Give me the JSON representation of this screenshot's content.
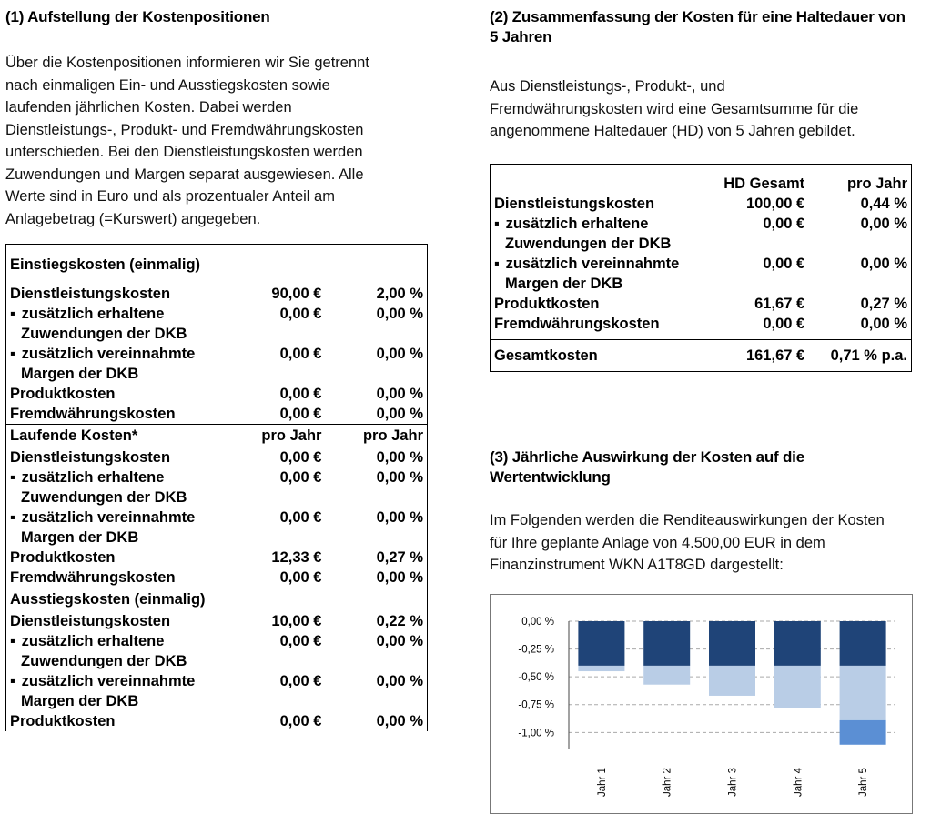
{
  "left": {
    "title": "(1) Aufstellung der Kostenpositionen",
    "intro_lines": [
      "Über die Kostenpositionen informieren wir Sie getrennt",
      "nach einmaligen Ein- und Ausstiegskosten sowie",
      "laufenden jährlichen Kosten. Dabei werden",
      "Dienstleistungs-, Produkt- und Fremdwährungskosten",
      "unterschieden. Bei den Dienstleistungskosten werden",
      "Zuwendungen und Margen separat ausgewiesen. Alle",
      "Werte sind in Euro und als prozentualer Anteil am",
      "Anlagebetrag (=Kurswert) angegeben."
    ],
    "sections": [
      {
        "header": "Einstiegskosten (einmalig)",
        "col1": "",
        "col2": "",
        "rows": [
          {
            "label": "Dienstleistungskosten",
            "v1": "90,00 €",
            "v2": "2,00 %"
          },
          {
            "bullet": "▪",
            "label": "zusätzlich erhaltene",
            "label2": "Zuwendungen der DKB",
            "v1": "0,00 €",
            "v2": "0,00 %"
          },
          {
            "bullet": "▪",
            "label": "zusätzlich vereinnahmte",
            "label2": "Margen der DKB",
            "v1": "0,00 €",
            "v2": "0,00 %"
          },
          {
            "label": "Produktkosten",
            "v1": "0,00 €",
            "v2": "0,00 %"
          },
          {
            "label": "Fremdwährungskosten",
            "v1": "0,00 €",
            "v2": "0,00 %"
          }
        ]
      },
      {
        "header": "Laufende Kosten*",
        "col1": "pro Jahr",
        "col2": "pro Jahr",
        "rows": [
          {
            "label": "Dienstleistungskosten",
            "v1": "0,00 €",
            "v2": "0,00 %"
          },
          {
            "bullet": "▪",
            "label": "zusätzlich erhaltene",
            "label2": "Zuwendungen der DKB",
            "v1": "0,00 €",
            "v2": "0,00 %"
          },
          {
            "bullet": "▪",
            "label": "zusätzlich vereinnahmte",
            "label2": "Margen der DKB",
            "v1": "0,00 €",
            "v2": "0,00 %"
          },
          {
            "label": "Produktkosten",
            "v1": "12,33 €",
            "v2": "0,27 %"
          },
          {
            "label": "Fremdwährungskosten",
            "v1": "0,00 €",
            "v2": "0,00 %"
          }
        ]
      },
      {
        "header": "Ausstiegskosten (einmalig)",
        "col1": "",
        "col2": "",
        "rows": [
          {
            "label": "Dienstleistungskosten",
            "v1": "10,00 €",
            "v2": "0,22 %"
          },
          {
            "bullet": "▪",
            "label": "zusätzlich erhaltene",
            "label2": "Zuwendungen der DKB",
            "v1": "0,00 €",
            "v2": "0,00 %"
          },
          {
            "bullet": "▪",
            "label": "zusätzlich vereinnahmte",
            "label2": "Margen der DKB",
            "v1": "0,00 €",
            "v2": "0,00 %"
          },
          {
            "label": "Produktkosten",
            "v1": "0,00 €",
            "v2": "0,00 %"
          }
        ]
      }
    ]
  },
  "right": {
    "title": "(2) Zusammenfassung der Kosten für eine Haltedauer von 5 Jahren",
    "intro_lines": [
      "Aus Dienstleistungs-, Produkt-, und",
      "Fremdwährungskosten wird eine Gesamtsumme für die",
      "angenommene Haltedauer (HD) von 5 Jahren gebildet."
    ],
    "summary": {
      "col1": "HD Gesamt",
      "col2": "pro Jahr",
      "rows": [
        {
          "label": "Dienstleistungskosten",
          "v1": "100,00 €",
          "v2": "0,44 %"
        },
        {
          "bullet": "▪",
          "label": "zusätzlich erhaltene",
          "label2": "Zuwendungen der DKB",
          "v1": "0,00 €",
          "v2": "0,00 %"
        },
        {
          "bullet": "▪",
          "label": "zusätzlich vereinnahmte",
          "label2": "Margen der DKB",
          "v1": "0,00 €",
          "v2": "0,00 %"
        },
        {
          "label": "Produktkosten",
          "v1": "61,67 €",
          "v2": "0,27 %"
        },
        {
          "label": "Fremdwährungskosten",
          "v1": "0,00 €",
          "v2": "0,00 %"
        }
      ],
      "total": {
        "label": "Gesamtkosten",
        "v1": "161,67 €",
        "v2": "0,71 % p.a."
      }
    },
    "impact_title": "(3) Jährliche Auswirkung der Kosten auf die Wertentwicklung",
    "impact_lines": [
      "Im Folgenden werden die Renditeauswirkungen der Kosten",
      "für Ihre geplante Anlage von 4.500,00 EUR in dem",
      "Finanzinstrument WKN A1T8GD dargestellt:"
    ]
  },
  "chart_data": {
    "type": "bar",
    "stacked": true,
    "categories": [
      "Jahr 1",
      "Jahr 2",
      "Jahr 3",
      "Jahr 4",
      "Jahr 5"
    ],
    "series": [
      {
        "color": "#1f4478",
        "values": [
          -0.4,
          -0.4,
          -0.4,
          -0.4,
          -0.4
        ]
      },
      {
        "color": "#b9cde6",
        "values": [
          -0.05,
          -0.17,
          -0.27,
          -0.38,
          -0.49
        ]
      },
      {
        "color": "#5b8fd4",
        "values": [
          0,
          0,
          0,
          0,
          -0.22
        ]
      }
    ],
    "y_ticks": [
      "0,00 %",
      "-0,25 %",
      "-0,50 %",
      "-0,75 %",
      "-1,00 %"
    ],
    "y_tick_values": [
      0,
      -0.25,
      -0.5,
      -0.75,
      -1.0
    ],
    "ylim": [
      -1.12,
      0
    ],
    "grid": true
  }
}
